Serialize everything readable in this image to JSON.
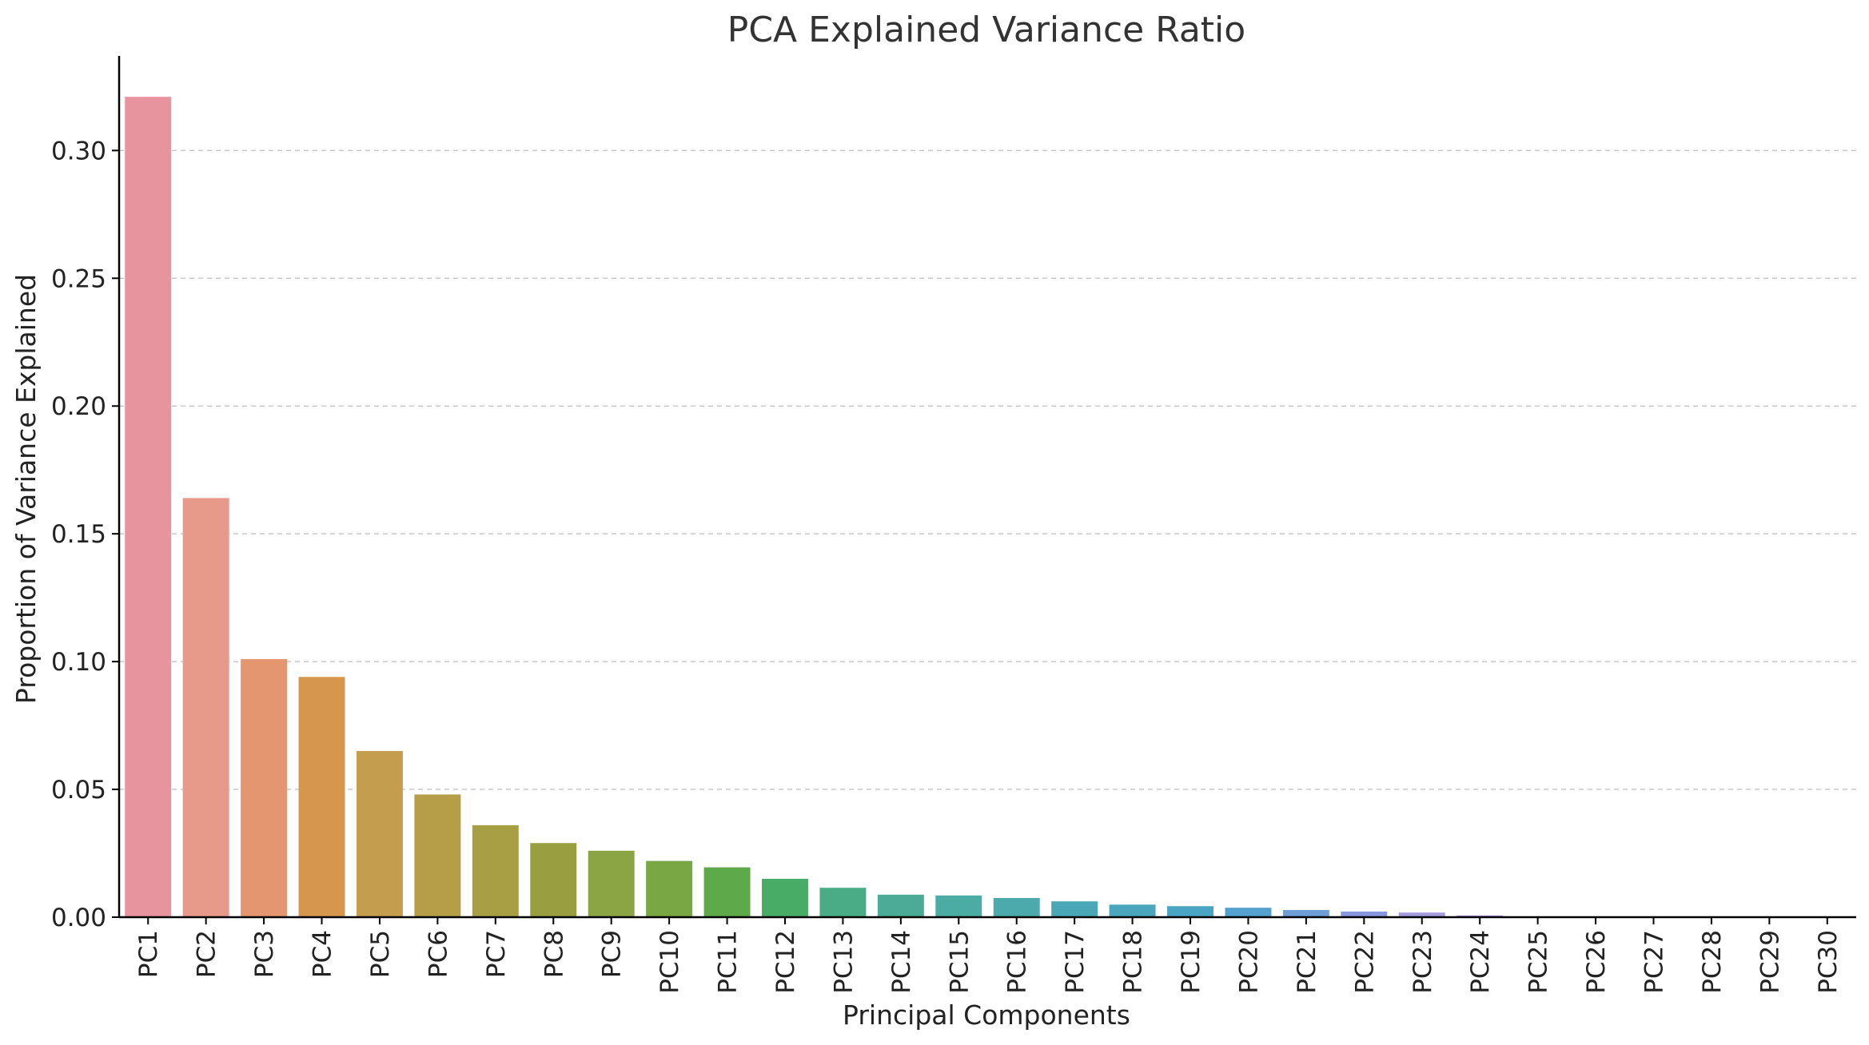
{
  "chart_data": {
    "type": "bar",
    "title": "PCA Explained Variance Ratio",
    "xlabel": "Principal Components",
    "ylabel": "Proportion of Variance Explained",
    "ylim": [
      0,
      0.337
    ],
    "yticks": [
      0.0,
      0.05,
      0.1,
      0.15,
      0.2,
      0.25,
      0.3
    ],
    "ytick_labels": [
      "0.00",
      "0.05",
      "0.10",
      "0.15",
      "0.20",
      "0.25",
      "0.30"
    ],
    "grid": "y-dashed",
    "categories": [
      "PC1",
      "PC2",
      "PC3",
      "PC4",
      "PC5",
      "PC6",
      "PC7",
      "PC8",
      "PC9",
      "PC10",
      "PC11",
      "PC12",
      "PC13",
      "PC14",
      "PC15",
      "PC16",
      "PC17",
      "PC18",
      "PC19",
      "PC20",
      "PC21",
      "PC22",
      "PC23",
      "PC24",
      "PC25",
      "PC26",
      "PC27",
      "PC28",
      "PC29",
      "PC30"
    ],
    "values": [
      0.321,
      0.164,
      0.101,
      0.094,
      0.065,
      0.048,
      0.036,
      0.029,
      0.026,
      0.022,
      0.0195,
      0.015,
      0.0115,
      0.0088,
      0.0085,
      0.0075,
      0.0062,
      0.0049,
      0.0043,
      0.0037,
      0.0028,
      0.0022,
      0.0018,
      0.0007,
      0.0,
      0.0,
      0.0,
      0.0,
      0.0,
      0.0
    ],
    "colors": [
      "#e8949f",
      "#e79a8a",
      "#e3966f",
      "#d6964e",
      "#c59d4f",
      "#b69d48",
      "#a89f44",
      "#999f40",
      "#8ca544",
      "#79a744",
      "#5eaa4a",
      "#48ac67",
      "#4aac87",
      "#4cab96",
      "#4aaca3",
      "#4caaad",
      "#4aa8b6",
      "#4ba6bd",
      "#4aa4c3",
      "#54a1cf",
      "#6d9ed8",
      "#8798de",
      "#a39ae0",
      "#b599df",
      "#c29adb",
      "#cf98d5",
      "#dc97cd",
      "#e496c1",
      "#e699b4",
      "#e898aa"
    ]
  }
}
